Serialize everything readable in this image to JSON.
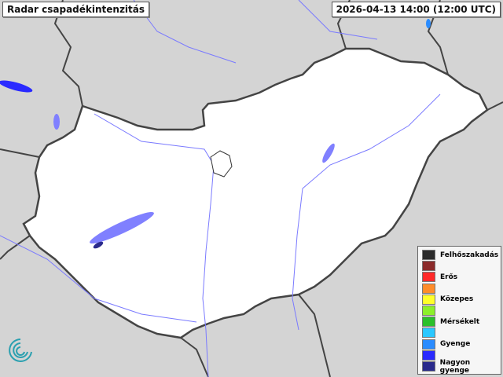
{
  "header": {
    "title": "Radar csapadékintenzitás",
    "timestamp": "2026-04-13 14:00 (12:00 UTC)"
  },
  "legend": {
    "items": [
      {
        "label": "Felhőszakadás",
        "color": "#2b2b2b"
      },
      {
        "label": "",
        "color": "#8b2a2a"
      },
      {
        "label": "Erős",
        "color": "#ff2a2a"
      },
      {
        "label": "",
        "color": "#ff8c2a"
      },
      {
        "label": "Közepes",
        "color": "#ffff2a"
      },
      {
        "label": "",
        "color": "#8cf02a"
      },
      {
        "label": "Mérsékelt",
        "color": "#2ac02a"
      },
      {
        "label": "",
        "color": "#2ac8ff"
      },
      {
        "label": "Gyenge",
        "color": "#2a8cff"
      },
      {
        "label": "",
        "color": "#2a2aff"
      },
      {
        "label": "Nagyon gyenge",
        "color": "#2a2a8c"
      }
    ]
  },
  "colors": {
    "country_fill": "#ffffff",
    "background": "#d4d4d4",
    "rivers": "#7a7aff",
    "border": "#444444"
  }
}
